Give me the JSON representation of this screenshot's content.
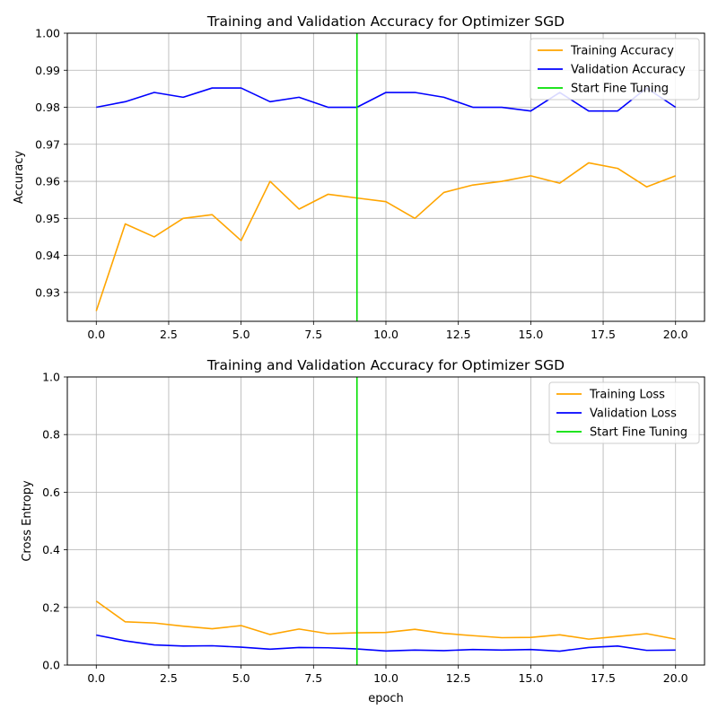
{
  "chart_data": [
    {
      "type": "line",
      "title": "Training and Validation Accuracy for Optimizer SGD",
      "xlabel": "",
      "ylabel": "Accuracy",
      "xlim": [
        -1,
        21
      ],
      "ylim": [
        0.9222,
        1.0
      ],
      "grid": true,
      "legend_position": "top-right",
      "x_ticks": [
        0.0,
        2.5,
        5.0,
        7.5,
        10.0,
        12.5,
        15.0,
        17.5,
        20.0
      ],
      "x_tick_labels": [
        "0.0",
        "2.5",
        "5.0",
        "7.5",
        "10.0",
        "12.5",
        "15.0",
        "17.5",
        "20.0"
      ],
      "y_ticks": [
        0.93,
        0.94,
        0.95,
        0.96,
        0.97,
        0.98,
        0.99,
        1.0
      ],
      "y_tick_labels": [
        "0.93",
        "0.94",
        "0.95",
        "0.96",
        "0.97",
        "0.98",
        "0.99",
        "1.00"
      ],
      "x": [
        0,
        1,
        2,
        3,
        4,
        5,
        6,
        7,
        8,
        9,
        10,
        11,
        12,
        13,
        14,
        15,
        16,
        17,
        18,
        19,
        20
      ],
      "series": [
        {
          "name": "Training Accuracy",
          "color": "#ffa500",
          "values": [
            0.925,
            0.9485,
            0.945,
            0.95,
            0.951,
            0.944,
            0.96,
            0.9525,
            0.9565,
            0.9555,
            0.9545,
            0.95,
            0.957,
            0.959,
            0.96,
            0.9615,
            0.9595,
            0.965,
            0.9635,
            0.9585,
            0.9615
          ]
        },
        {
          "name": "Validation Accuracy",
          "color": "#0000ff",
          "values": [
            0.98,
            0.9815,
            0.984,
            0.9827,
            0.9852,
            0.9852,
            0.9815,
            0.9827,
            0.98,
            0.98,
            0.984,
            0.984,
            0.9827,
            0.98,
            0.98,
            0.979,
            0.984,
            0.979,
            0.979,
            0.9852,
            0.98
          ]
        }
      ],
      "vline": {
        "name": "Start Fine Tuning",
        "x": 9,
        "color": "#00e000"
      }
    },
    {
      "type": "line",
      "title": "Training and Validation Accuracy for Optimizer SGD",
      "xlabel": "epoch",
      "ylabel": "Cross Entropy",
      "xlim": [
        -1,
        21
      ],
      "ylim": [
        0.0,
        1.0
      ],
      "grid": true,
      "legend_position": "top-right",
      "x_ticks": [
        0.0,
        2.5,
        5.0,
        7.5,
        10.0,
        12.5,
        15.0,
        17.5,
        20.0
      ],
      "x_tick_labels": [
        "0.0",
        "2.5",
        "5.0",
        "7.5",
        "10.0",
        "12.5",
        "15.0",
        "17.5",
        "20.0"
      ],
      "y_ticks": [
        0.0,
        0.2,
        0.4,
        0.6,
        0.8,
        1.0
      ],
      "y_tick_labels": [
        "0.0",
        "0.2",
        "0.4",
        "0.6",
        "0.8",
        "1.0"
      ],
      "x": [
        0,
        1,
        2,
        3,
        4,
        5,
        6,
        7,
        8,
        9,
        10,
        11,
        12,
        13,
        14,
        15,
        16,
        17,
        18,
        19,
        20
      ],
      "series": [
        {
          "name": "Training Loss",
          "color": "#ffa500",
          "values": [
            0.222,
            0.15,
            0.146,
            0.135,
            0.126,
            0.137,
            0.106,
            0.125,
            0.109,
            0.112,
            0.113,
            0.124,
            0.11,
            0.102,
            0.095,
            0.096,
            0.105,
            0.09,
            0.099,
            0.109,
            0.09
          ]
        },
        {
          "name": "Validation Loss",
          "color": "#0000ff",
          "values": [
            0.104,
            0.084,
            0.07,
            0.066,
            0.067,
            0.062,
            0.055,
            0.061,
            0.06,
            0.056,
            0.049,
            0.052,
            0.05,
            0.054,
            0.052,
            0.054,
            0.048,
            0.061,
            0.066,
            0.051,
            0.052
          ]
        }
      ],
      "vline": {
        "name": "Start Fine Tuning",
        "x": 9,
        "color": "#00e000"
      }
    }
  ]
}
